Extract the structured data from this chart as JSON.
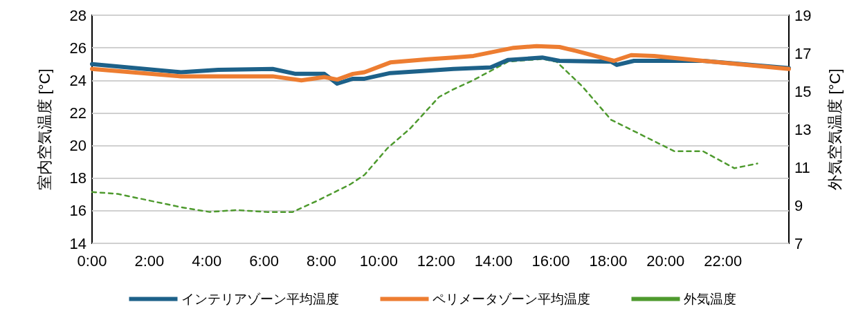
{
  "chart_data": {
    "type": "line",
    "ylabel": "室内空気温度 [°C]",
    "y2label": "外気空気温度 [°C]",
    "xlim": [
      0,
      24.3
    ],
    "xticks": [
      {
        "value": 0,
        "label": "0:00"
      },
      {
        "value": 2,
        "label": "2:00"
      },
      {
        "value": 4,
        "label": "4:00"
      },
      {
        "value": 6,
        "label": "6:00"
      },
      {
        "value": 8,
        "label": "8:00"
      },
      {
        "value": 10,
        "label": "10:00"
      },
      {
        "value": 12,
        "label": "12:00"
      },
      {
        "value": 14,
        "label": "14:00"
      },
      {
        "value": 16,
        "label": "16:00"
      },
      {
        "value": 18,
        "label": "18:00"
      },
      {
        "value": 20,
        "label": "20:00"
      },
      {
        "value": 22,
        "label": "22:00"
      }
    ],
    "ylim": [
      14,
      28
    ],
    "yticks": [
      14,
      16,
      18,
      20,
      22,
      24,
      26,
      28
    ],
    "y2lim": [
      7,
      19
    ],
    "y2ticks": [
      7,
      9,
      11,
      13,
      15,
      17,
      19
    ],
    "grid": "y",
    "legend": "bottom",
    "marker": "none",
    "series": [
      {
        "name": "インテリアゾーン平均温度",
        "color": "#1d6189",
        "line_style": "solid",
        "x": [
          0,
          3.1,
          4.4,
          6.3,
          7.1,
          8.1,
          8.55,
          9.1,
          9.5,
          10.4,
          11.7,
          12.6,
          13.9,
          14.5,
          15.7,
          16.3,
          18.1,
          18.3,
          18.9,
          21.3,
          24.3
        ],
        "values": [
          25.0,
          24.5,
          24.65,
          24.7,
          24.4,
          24.4,
          23.8,
          24.1,
          24.1,
          24.45,
          24.6,
          24.7,
          24.8,
          25.25,
          25.4,
          25.2,
          25.15,
          24.95,
          25.2,
          25.2,
          24.75
        ]
      },
      {
        "name": "ペリメータゾーン平均温度",
        "color": "#ed7d31",
        "line_style": "solid",
        "x": [
          0,
          3.1,
          6.3,
          7.3,
          8.1,
          8.55,
          9.1,
          9.5,
          10.4,
          11.7,
          12.6,
          13.3,
          14.7,
          15.5,
          16.3,
          16.9,
          18.2,
          18.8,
          19.6,
          21.3,
          24.3
        ],
        "values": [
          24.7,
          24.25,
          24.25,
          24.0,
          24.2,
          24.05,
          24.4,
          24.5,
          25.1,
          25.3,
          25.4,
          25.5,
          26.0,
          26.1,
          26.05,
          25.8,
          25.2,
          25.55,
          25.5,
          25.2,
          24.7
        ]
      },
      {
        "name": "外気温度",
        "color": "#4e9a2e",
        "line_style": "dashed",
        "axis": "y2",
        "x": [
          0,
          0.9,
          3.1,
          4.1,
          5.05,
          6.1,
          7.0,
          7.8,
          9.0,
          9.5,
          10.3,
          11.1,
          12.1,
          12.6,
          13.25,
          14.5,
          15.7,
          16.2,
          17.1,
          18.1,
          19.9,
          20.3,
          21.3,
          22.4,
          23.2
        ],
        "values": [
          9.7,
          9.6,
          8.9,
          8.65,
          8.75,
          8.65,
          8.65,
          9.2,
          10.1,
          10.6,
          12.0,
          13.05,
          14.7,
          15.1,
          15.55,
          16.55,
          16.7,
          16.55,
          15.25,
          13.5,
          12.15,
          11.85,
          11.85,
          10.95,
          11.2
        ]
      }
    ]
  }
}
